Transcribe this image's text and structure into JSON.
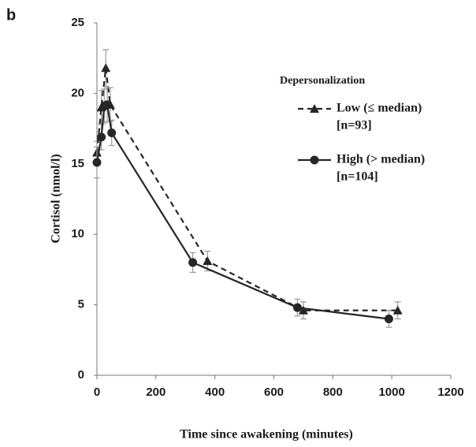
{
  "chart_data": {
    "type": "line",
    "panel_label": "b",
    "x_label": "Time since awakening (minutes)",
    "y_label": "Cortisol (nmol/l)",
    "legend_title": "Depersonalization",
    "xlim": [
      0,
      1200
    ],
    "xticks": [
      0,
      200,
      400,
      600,
      800,
      1000,
      1200
    ],
    "ylim": [
      0,
      25
    ],
    "yticks": [
      0,
      5,
      10,
      15,
      20,
      25
    ],
    "grid": false,
    "series": [
      {
        "name": "Low (≤ median)",
        "n_label": "[n=93]",
        "color": "#262626",
        "dash": true,
        "marker": "triangle",
        "x": [
          0,
          15,
          30,
          45,
          375,
          700,
          1020
        ],
        "values": [
          15.8,
          19.0,
          21.8,
          19.2,
          8.1,
          4.6,
          4.6
        ],
        "errors": [
          0.8,
          1.2,
          1.3,
          1.2,
          0.7,
          0.6,
          0.6
        ]
      },
      {
        "name": "High (> median)",
        "n_label": "[n=104]",
        "color": "#262626",
        "dash": false,
        "marker": "circle",
        "x": [
          0,
          15,
          25,
          35,
          50,
          325,
          680,
          990
        ],
        "values": [
          15.1,
          16.9,
          19.1,
          19.2,
          17.2,
          8.0,
          4.8,
          4.0
        ],
        "errors": [
          1.1,
          0.9,
          1.2,
          1.2,
          0.9,
          0.7,
          0.6,
          0.6
        ]
      }
    ]
  }
}
